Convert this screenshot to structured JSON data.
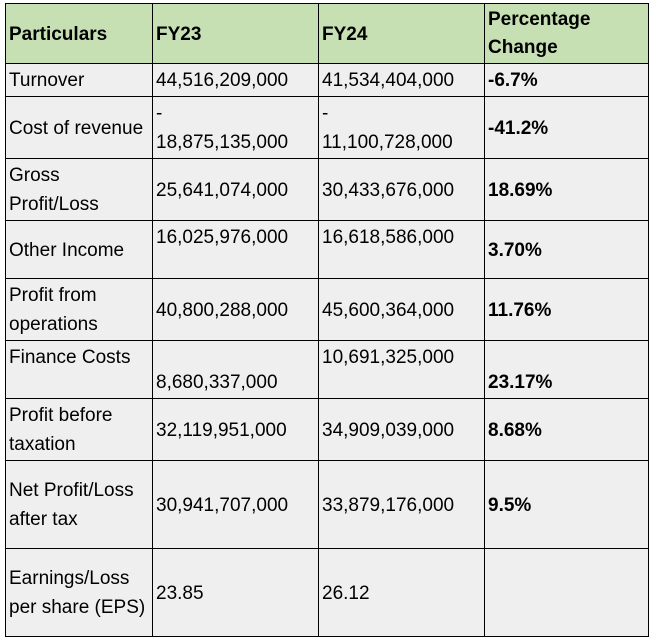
{
  "table": {
    "headers": [
      "Particulars",
      "FY23",
      "FY24",
      "Percentage Change"
    ],
    "rows": [
      {
        "particular": "Turnover",
        "fy23": "44,516,209,000",
        "fy24": "41,534,404,000",
        "change": "-6.7%"
      },
      {
        "particular": "Cost of revenue",
        "fy23_sign": "-",
        "fy23": "18,875,135,000",
        "fy24_sign": "-",
        "fy24": "11,100,728,000",
        "change": "-41.2%"
      },
      {
        "particular": "Gross Profit/Loss",
        "fy23": "25,641,074,000",
        "fy24": "30,433,676,000",
        "change": "18.69%"
      },
      {
        "particular": "Other Income",
        "fy23": "16,025,976,000",
        "fy24": "16,618,586,000",
        "change": "3.70%"
      },
      {
        "particular": "Profit from operations",
        "fy23": "40,800,288,000",
        "fy24": "45,600,364,000",
        "change": "11.76%"
      },
      {
        "particular": "Finance Costs",
        "fy23": "8,680,337,000",
        "fy24": "10,691,325,000",
        "change": "23.17%"
      },
      {
        "particular": "Profit before taxation",
        "fy23": "32,119,951,000",
        "fy24": "34,909,039,000",
        "change": "8.68%"
      },
      {
        "particular": "Net Profit/Loss after tax",
        "fy23": "30,941,707,000",
        "fy24": "33,879,176,000",
        "change": "9.5%"
      },
      {
        "particular": "Earnings/Loss per share (EPS)",
        "fy23": "23.85",
        "fy24": "26.12",
        "change": ""
      }
    ]
  }
}
